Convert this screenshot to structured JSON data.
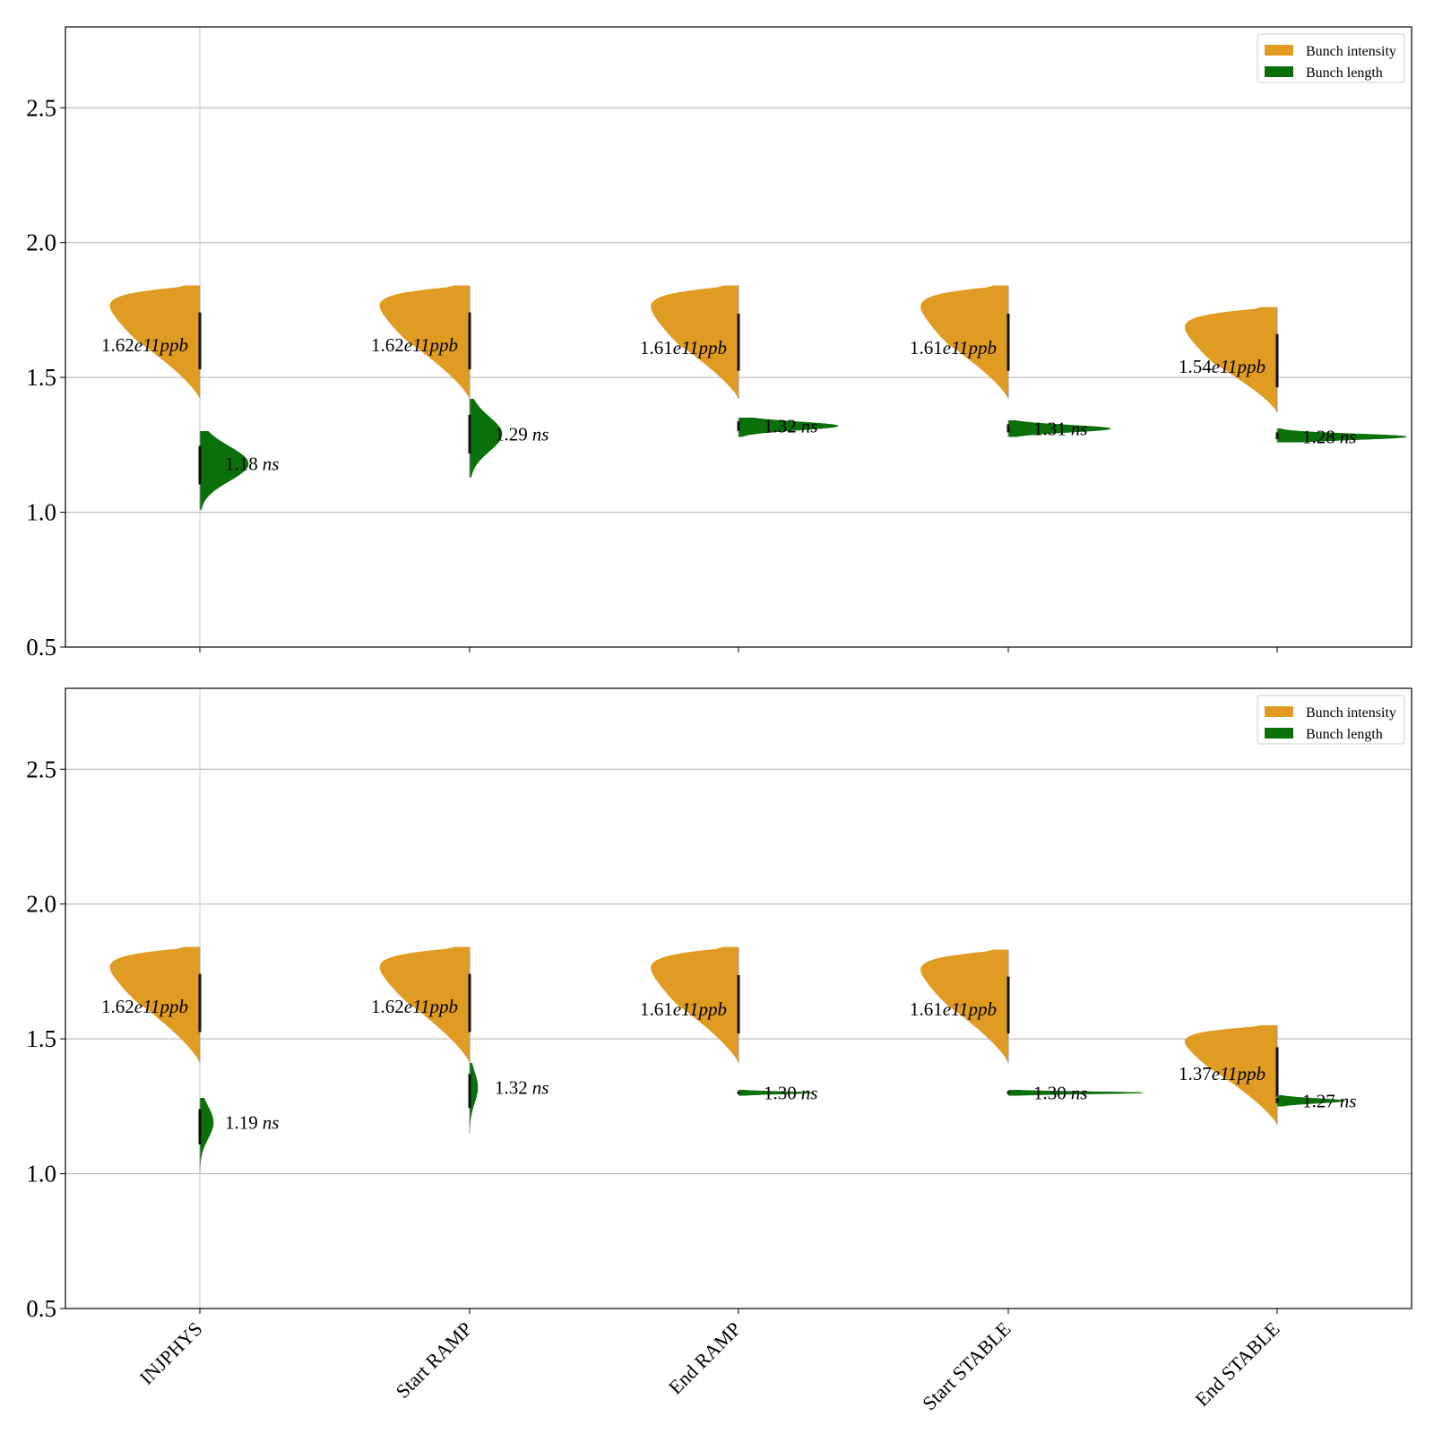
{
  "chart_data": [
    {
      "type": "violin",
      "categories": [
        "INJPHYS",
        "Start RAMP",
        "End RAMP",
        "Start STABLE",
        "End STABLE"
      ],
      "ylim": [
        0.5,
        2.8
      ],
      "yticks": [
        "0.5",
        "1.0",
        "1.5",
        "2.0",
        "2.5"
      ],
      "ytick_values": [
        0.5,
        1.0,
        1.5,
        2.0,
        2.5
      ],
      "grid": true,
      "legend_position": "top-right",
      "series": [
        {
          "name": "Bunch intensity",
          "color": "#e09b22",
          "side": "left",
          "values": [
            1.62,
            1.62,
            1.61,
            1.61,
            1.54
          ],
          "labels": [
            "1.62",
            "1.62",
            "1.61",
            "1.61",
            "1.54"
          ],
          "label_unit": "e11ppb",
          "min": [
            1.42,
            1.42,
            1.42,
            1.42,
            1.37
          ],
          "max": [
            1.84,
            1.84,
            1.84,
            1.84,
            1.76
          ],
          "width": [
            0.38,
            0.38,
            0.37,
            0.37,
            0.39
          ]
        },
        {
          "name": "Bunch length",
          "color": "#0a700a",
          "side": "right",
          "values": [
            1.18,
            1.29,
            1.32,
            1.31,
            1.28
          ],
          "labels": [
            "1.18",
            "1.29",
            "1.32",
            "1.31",
            "1.28"
          ],
          "label_unit": "ns",
          "min": [
            1.01,
            1.13,
            1.28,
            1.28,
            1.26
          ],
          "max": [
            1.3,
            1.42,
            1.35,
            1.34,
            1.31
          ],
          "width": [
            0.18,
            0.12,
            0.37,
            0.38,
            0.48
          ]
        }
      ]
    },
    {
      "type": "violin",
      "categories": [
        "INJPHYS",
        "Start RAMP",
        "End RAMP",
        "Start STABLE",
        "End STABLE"
      ],
      "ylim": [
        0.5,
        2.8
      ],
      "yticks": [
        "0.5",
        "1.0",
        "1.5",
        "2.0",
        "2.5"
      ],
      "ytick_values": [
        0.5,
        1.0,
        1.5,
        2.0,
        2.5
      ],
      "grid": true,
      "legend_position": "top-right",
      "series": [
        {
          "name": "Bunch intensity",
          "color": "#e09b22",
          "side": "left",
          "values": [
            1.62,
            1.62,
            1.61,
            1.61,
            1.37
          ],
          "labels": [
            "1.62",
            "1.62",
            "1.61",
            "1.61",
            "1.37"
          ],
          "label_unit": "e11ppb",
          "min": [
            1.41,
            1.41,
            1.41,
            1.41,
            1.18
          ],
          "max": [
            1.84,
            1.84,
            1.84,
            1.83,
            1.55
          ],
          "width": [
            0.38,
            0.38,
            0.37,
            0.37,
            0.39
          ]
        },
        {
          "name": "Bunch length",
          "color": "#0a700a",
          "side": "right",
          "values": [
            1.19,
            1.32,
            1.3,
            1.3,
            1.27
          ],
          "labels": [
            "1.19",
            "1.32",
            "1.30",
            "1.30",
            "1.27"
          ],
          "label_unit": "ns",
          "min": [
            1.01,
            1.15,
            1.29,
            1.29,
            1.25
          ],
          "max": [
            1.28,
            1.41,
            1.31,
            1.31,
            1.29
          ],
          "width": [
            0.05,
            0.03,
            0.28,
            0.5,
            0.25
          ]
        }
      ]
    }
  ]
}
